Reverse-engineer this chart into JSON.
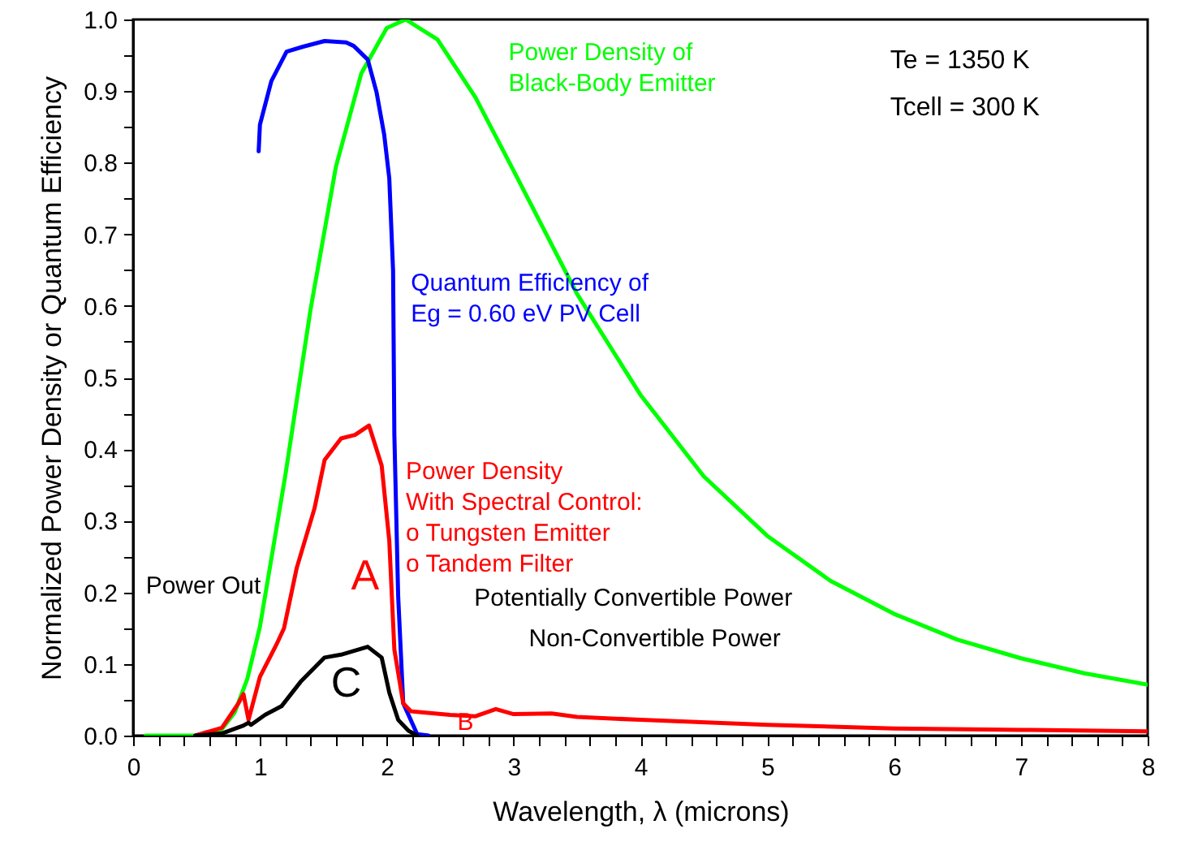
{
  "chart_data": {
    "type": "line",
    "xlabel": "Wavelength, λ (microns)",
    "ylabel": "Normalized Power Density or Quantum Efficiency",
    "xlim": [
      0,
      8
    ],
    "ylim": [
      0,
      1.0
    ],
    "xticks": [
      0,
      {
        "value": 0.2,
        "label": null
      },
      {
        "value": 0.4,
        "label": null
      },
      {
        "value": 0.6,
        "label": null
      },
      {
        "value": 0.8,
        "label": null
      },
      1,
      {
        "value": 1.2,
        "label": null
      },
      {
        "value": 1.4,
        "label": null
      },
      {
        "value": 1.6,
        "label": null
      },
      {
        "value": 1.8,
        "label": null
      },
      2,
      {
        "value": 2.2,
        "label": null
      },
      {
        "value": 2.4,
        "label": null
      },
      {
        "value": 2.6,
        "label": null
      },
      {
        "value": 2.8,
        "label": null
      },
      3,
      {
        "value": 3.2,
        "label": null
      },
      {
        "value": 3.4,
        "label": null
      },
      {
        "value": 3.6,
        "label": null
      },
      {
        "value": 3.8,
        "label": null
      },
      4,
      {
        "value": 4.2,
        "label": null
      },
      {
        "value": 4.4,
        "label": null
      },
      {
        "value": 4.6,
        "label": null
      },
      {
        "value": 4.8,
        "label": null
      },
      5,
      {
        "value": 5.2,
        "label": null
      },
      {
        "value": 5.4,
        "label": null
      },
      {
        "value": 5.6,
        "label": null
      },
      {
        "value": 5.8,
        "label": null
      },
      6,
      {
        "value": 6.2,
        "label": null
      },
      {
        "value": 6.4,
        "label": null
      },
      {
        "value": 6.6,
        "label": null
      },
      {
        "value": 6.8,
        "label": null
      },
      7,
      {
        "value": 7.2,
        "label": null
      },
      {
        "value": 7.4,
        "label": null
      },
      {
        "value": 7.6,
        "label": null
      },
      {
        "value": 7.8,
        "label": null
      },
      8
    ],
    "yticks": [
      {
        "value": 0,
        "label": "0.0"
      },
      {
        "value": 0.05,
        "label": null
      },
      {
        "value": 0.1,
        "label": "0.1"
      },
      {
        "value": 0.15,
        "label": null
      },
      {
        "value": 0.2,
        "label": "0.2"
      },
      {
        "value": 0.25,
        "label": null
      },
      {
        "value": 0.3,
        "label": "0.3"
      },
      {
        "value": 0.35,
        "label": null
      },
      {
        "value": 0.4,
        "label": "0.4"
      },
      {
        "value": 0.45,
        "label": null
      },
      {
        "value": 0.5,
        "label": "0.5"
      },
      {
        "value": 0.55,
        "label": null
      },
      {
        "value": 0.6,
        "label": "0.6"
      },
      {
        "value": 0.65,
        "label": null
      },
      {
        "value": 0.7,
        "label": "0.7"
      },
      {
        "value": 0.75,
        "label": null
      },
      {
        "value": 0.8,
        "label": "0.8"
      },
      {
        "value": 0.85,
        "label": null
      },
      {
        "value": 0.9,
        "label": "0.9"
      },
      {
        "value": 0.95,
        "label": null
      },
      {
        "value": 1.0,
        "label": "1.0"
      }
    ],
    "grid": false,
    "legend": false,
    "marker": "none",
    "line_style": "solid",
    "series": [
      {
        "name": "Power Density of\nBlack-Body Emitter",
        "color": "#00ff00",
        "x": [
          0.1,
          0.5,
          0.7,
          0.8,
          0.9,
          1.0,
          1.2,
          1.4,
          1.6,
          1.8,
          2.0,
          2.15,
          2.4,
          2.7,
          3.0,
          3.5,
          4.0,
          4.5,
          5.0,
          5.5,
          6.0,
          6.5,
          7.0,
          7.5,
          8.0
        ],
        "values": [
          0,
          0,
          0.009,
          0.032,
          0.079,
          0.152,
          0.363,
          0.596,
          0.795,
          0.925,
          0.988,
          1.0,
          0.972,
          0.891,
          0.789,
          0.617,
          0.476,
          0.362,
          0.279,
          0.216,
          0.17,
          0.134,
          0.108,
          0.087,
          0.071
        ]
      },
      {
        "name": "Quantum Efficiency of\nEg = 0.60 eV PV Cell",
        "color": "#0000ff",
        "x": [
          0.99,
          1.0,
          1.09,
          1.21,
          1.34,
          1.51,
          1.68,
          1.74,
          1.85,
          1.92,
          1.98,
          2.02,
          2.05,
          2.06,
          2.09,
          2.13,
          2.24,
          2.33
        ],
        "values": [
          0.816,
          0.853,
          0.914,
          0.955,
          0.962,
          0.97,
          0.968,
          0.963,
          0.944,
          0.898,
          0.839,
          0.778,
          0.649,
          0.42,
          0.195,
          0.045,
          0.002,
          0
        ]
      },
      {
        "name": "Power Density\nWith Spectral Control:\no Tungsten Emitter\no Tandem Filter",
        "color": "#ff0000",
        "x": [
          0.49,
          0.7,
          0.83,
          0.87,
          0.91,
          1.0,
          1.13,
          1.19,
          1.29,
          1.43,
          1.51,
          1.64,
          1.75,
          1.86,
          1.96,
          2.02,
          2.06,
          2.13,
          2.19,
          2.5,
          2.7,
          2.86,
          3.0,
          3.3,
          3.5,
          4.0,
          5.0,
          6.0,
          7.0,
          8.0
        ],
        "values": [
          0,
          0.011,
          0.045,
          0.058,
          0.022,
          0.082,
          0.127,
          0.15,
          0.234,
          0.317,
          0.385,
          0.415,
          0.42,
          0.433,
          0.377,
          0.272,
          0.12,
          0.045,
          0.034,
          0.029,
          0.027,
          0.037,
          0.03,
          0.031,
          0.026,
          0.022,
          0.015,
          0.01,
          0.008,
          0.006
        ]
      },
      {
        "name": "Power Out",
        "color": "#000000",
        "x": [
          0.49,
          0.7,
          0.87,
          0.91,
          0.93,
          1.04,
          1.17,
          1.32,
          1.51,
          1.64,
          1.85,
          1.96,
          2.02,
          2.09,
          2.17,
          2.24
        ],
        "values": [
          0,
          0.003,
          0.014,
          0.018,
          0.015,
          0.029,
          0.041,
          0.075,
          0.109,
          0.113,
          0.124,
          0.109,
          0.06,
          0.022,
          0.007,
          0
        ]
      }
    ],
    "annotations": [
      "A",
      "B",
      "C",
      "Potentially Convertible Power",
      "Non-Convertible Power",
      "Te = 1350 K",
      "Tcell = 300 K"
    ]
  }
}
